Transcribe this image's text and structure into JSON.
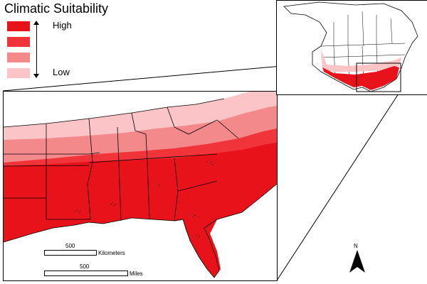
{
  "legend": {
    "title": "Climatic Suitability",
    "high_label": "High",
    "low_label": "Low",
    "classes": [
      "#e8131a",
      "#f1333a",
      "#f4898c",
      "#fbc4c6"
    ]
  },
  "scalebars": {
    "km_value": "500",
    "km_unit": "Kilometers",
    "mi_value": "500",
    "mi_unit": "Miles"
  },
  "north_arrow": {
    "label": "N"
  },
  "colors": {
    "border": "#000000",
    "background": "#ffffff"
  }
}
